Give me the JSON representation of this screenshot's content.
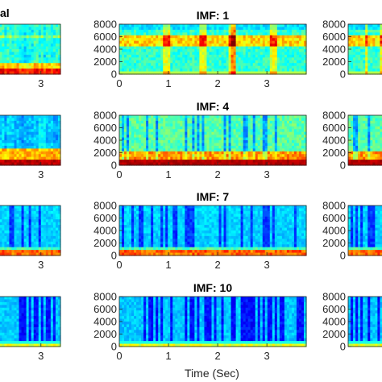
{
  "figure": {
    "xlabel": "Time (Sec)",
    "left_column_title_fragment": "al"
  },
  "chart_data": [
    {
      "type": "heatmap",
      "panel": "left-1",
      "title": "",
      "xticks": [
        3
      ],
      "yticks": [],
      "xlim": [
        0,
        3.8
      ],
      "ylim": [
        0,
        8000
      ],
      "colormap": "jet",
      "profile": "signal"
    },
    {
      "type": "heatmap",
      "panel": "center-1",
      "title": "IMF: 1",
      "xticks": [
        0,
        1,
        2,
        3
      ],
      "yticks": [
        0,
        2000,
        4000,
        6000,
        8000
      ],
      "xlim": [
        0,
        3.8
      ],
      "ylim": [
        0,
        8000
      ],
      "colormap": "jet",
      "profile": "imf1"
    },
    {
      "type": "heatmap",
      "panel": "right-1",
      "title": "",
      "xticks": [],
      "yticks": [
        0,
        2000,
        4000,
        6000,
        8000
      ],
      "xlim": [
        0,
        3.8
      ],
      "ylim": [
        0,
        8000
      ],
      "colormap": "jet",
      "profile": "imf1"
    },
    {
      "type": "heatmap",
      "panel": "left-2",
      "title": "",
      "xticks": [
        3
      ],
      "yticks": [],
      "xlim": [
        0,
        3.8
      ],
      "ylim": [
        0,
        8000
      ],
      "colormap": "jet",
      "profile": "low"
    },
    {
      "type": "heatmap",
      "panel": "center-2",
      "title": "IMF: 4",
      "xticks": [
        0,
        1,
        2,
        3
      ],
      "yticks": [
        0,
        2000,
        4000,
        6000,
        8000
      ],
      "xlim": [
        0,
        3.8
      ],
      "ylim": [
        0,
        8000
      ],
      "colormap": "jet",
      "profile": "imf4"
    },
    {
      "type": "heatmap",
      "panel": "right-2",
      "title": "",
      "xticks": [],
      "yticks": [
        0,
        2000,
        4000,
        6000,
        8000
      ],
      "xlim": [
        0,
        3.8
      ],
      "ylim": [
        0,
        8000
      ],
      "colormap": "jet",
      "profile": "imf4"
    },
    {
      "type": "heatmap",
      "panel": "left-3",
      "title": "",
      "xticks": [
        3
      ],
      "yticks": [],
      "xlim": [
        0,
        3.8
      ],
      "ylim": [
        0,
        8000
      ],
      "colormap": "jet",
      "profile": "imf7"
    },
    {
      "type": "heatmap",
      "panel": "center-3",
      "title": "IMF: 7",
      "xticks": [
        0,
        1,
        2,
        3
      ],
      "yticks": [
        0,
        2000,
        4000,
        6000,
        8000
      ],
      "xlim": [
        0,
        3.8
      ],
      "ylim": [
        0,
        8000
      ],
      "colormap": "jet",
      "profile": "imf7"
    },
    {
      "type": "heatmap",
      "panel": "right-3",
      "title": "",
      "xticks": [],
      "yticks": [
        0,
        2000,
        4000,
        6000,
        8000
      ],
      "xlim": [
        0,
        3.8
      ],
      "ylim": [
        0,
        8000
      ],
      "colormap": "jet",
      "profile": "imf7"
    },
    {
      "type": "heatmap",
      "panel": "left-4",
      "title": "",
      "xticks": [
        3
      ],
      "yticks": [],
      "xlim": [
        0,
        3.8
      ],
      "ylim": [
        0,
        8000
      ],
      "colormap": "jet",
      "profile": "imf10"
    },
    {
      "type": "heatmap",
      "panel": "center-4",
      "title": "IMF: 10",
      "xticks": [
        0,
        1,
        2,
        3
      ],
      "yticks": [
        0,
        2000,
        4000,
        6000,
        8000
      ],
      "xlim": [
        0,
        3.8
      ],
      "ylim": [
        0,
        8000
      ],
      "colormap": "jet",
      "profile": "imf10"
    },
    {
      "type": "heatmap",
      "panel": "right-4",
      "title": "",
      "xticks": [],
      "yticks": [
        0,
        2000,
        4000,
        6000,
        8000
      ],
      "xlim": [
        0,
        3.8
      ],
      "ylim": [
        0,
        8000
      ],
      "colormap": "jet",
      "profile": "imf10"
    }
  ]
}
